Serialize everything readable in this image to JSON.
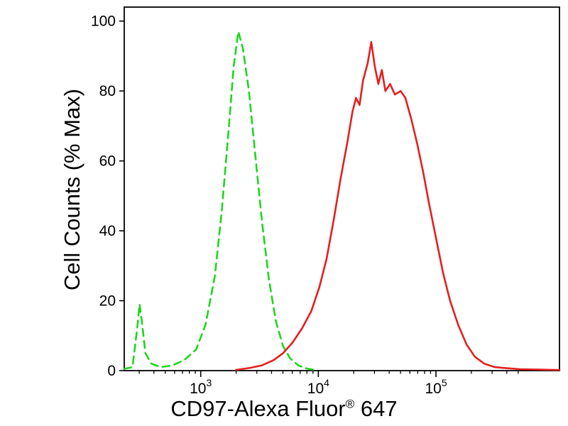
{
  "figure": {
    "ylabel": "Cell Counts (% Max)",
    "xlabel_main": "CD97-Alexa Fluor",
    "xlabel_reg": "®",
    "xlabel_suffix": " 647"
  },
  "chart_data": {
    "type": "line",
    "title": "",
    "xlabel": "CD97-Alexa Fluor® 647",
    "ylabel": "Cell Counts (% Max)",
    "x_scale": "log10",
    "xlim_log10": [
      2.35,
      6.05
    ],
    "ylim": [
      0,
      104
    ],
    "grid": false,
    "legend": "none",
    "x_major_ticks": [
      {
        "value": 1000,
        "base": "10",
        "exp": "3"
      },
      {
        "value": 10000,
        "base": "10",
        "exp": "4"
      },
      {
        "value": 100000,
        "base": "10",
        "exp": "5"
      }
    ],
    "x_minor_tick_max_log10": 5.72,
    "y_ticks": [
      0,
      20,
      40,
      60,
      80,
      100
    ],
    "series": [
      {
        "name": "green-dashed",
        "style": "dashed",
        "color": "#1fd51f",
        "peak_log10x": 3.32,
        "peak_y": 97,
        "points": [
          [
            2.35,
            0.5
          ],
          [
            2.42,
            1
          ],
          [
            2.46,
            12
          ],
          [
            2.48,
            19
          ],
          [
            2.5,
            14
          ],
          [
            2.53,
            5
          ],
          [
            2.58,
            2
          ],
          [
            2.66,
            1
          ],
          [
            2.76,
            1.5
          ],
          [
            2.86,
            3
          ],
          [
            2.96,
            6
          ],
          [
            3.04,
            13
          ],
          [
            3.12,
            27
          ],
          [
            3.18,
            46
          ],
          [
            3.24,
            70
          ],
          [
            3.28,
            87
          ],
          [
            3.32,
            97
          ],
          [
            3.36,
            92
          ],
          [
            3.41,
            80
          ],
          [
            3.46,
            63
          ],
          [
            3.52,
            43
          ],
          [
            3.58,
            26
          ],
          [
            3.64,
            14
          ],
          [
            3.7,
            7
          ],
          [
            3.76,
            3.5
          ],
          [
            3.83,
            1.5
          ],
          [
            3.9,
            0.6
          ],
          [
            3.97,
            0.2
          ]
        ]
      },
      {
        "name": "red-solid",
        "style": "solid",
        "color": "#e31f1f",
        "peak_log10x": 4.45,
        "peak_y": 94,
        "points": [
          [
            3.3,
            0.2
          ],
          [
            3.42,
            0.8
          ],
          [
            3.52,
            1.5
          ],
          [
            3.62,
            3
          ],
          [
            3.7,
            5
          ],
          [
            3.78,
            8
          ],
          [
            3.86,
            12
          ],
          [
            3.94,
            17
          ],
          [
            4.01,
            24
          ],
          [
            4.07,
            32
          ],
          [
            4.13,
            43
          ],
          [
            4.19,
            55
          ],
          [
            4.25,
            66
          ],
          [
            4.29,
            74
          ],
          [
            4.32,
            78
          ],
          [
            4.35,
            76
          ],
          [
            4.38,
            83
          ],
          [
            4.42,
            88
          ],
          [
            4.45,
            94
          ],
          [
            4.48,
            87
          ],
          [
            4.51,
            82
          ],
          [
            4.54,
            86
          ],
          [
            4.57,
            80
          ],
          [
            4.61,
            82
          ],
          [
            4.65,
            79
          ],
          [
            4.7,
            80
          ],
          [
            4.74,
            78
          ],
          [
            4.79,
            72
          ],
          [
            4.84,
            65
          ],
          [
            4.89,
            57
          ],
          [
            4.94,
            48
          ],
          [
            5.0,
            38
          ],
          [
            5.06,
            28
          ],
          [
            5.12,
            20
          ],
          [
            5.19,
            13
          ],
          [
            5.26,
            7.5
          ],
          [
            5.33,
            4
          ],
          [
            5.41,
            2
          ],
          [
            5.5,
            1
          ],
          [
            5.6,
            0.7
          ],
          [
            5.72,
            0.4
          ],
          [
            5.88,
            0.3
          ],
          [
            6.0,
            0.2
          ],
          [
            6.05,
            0.2
          ]
        ]
      }
    ]
  }
}
